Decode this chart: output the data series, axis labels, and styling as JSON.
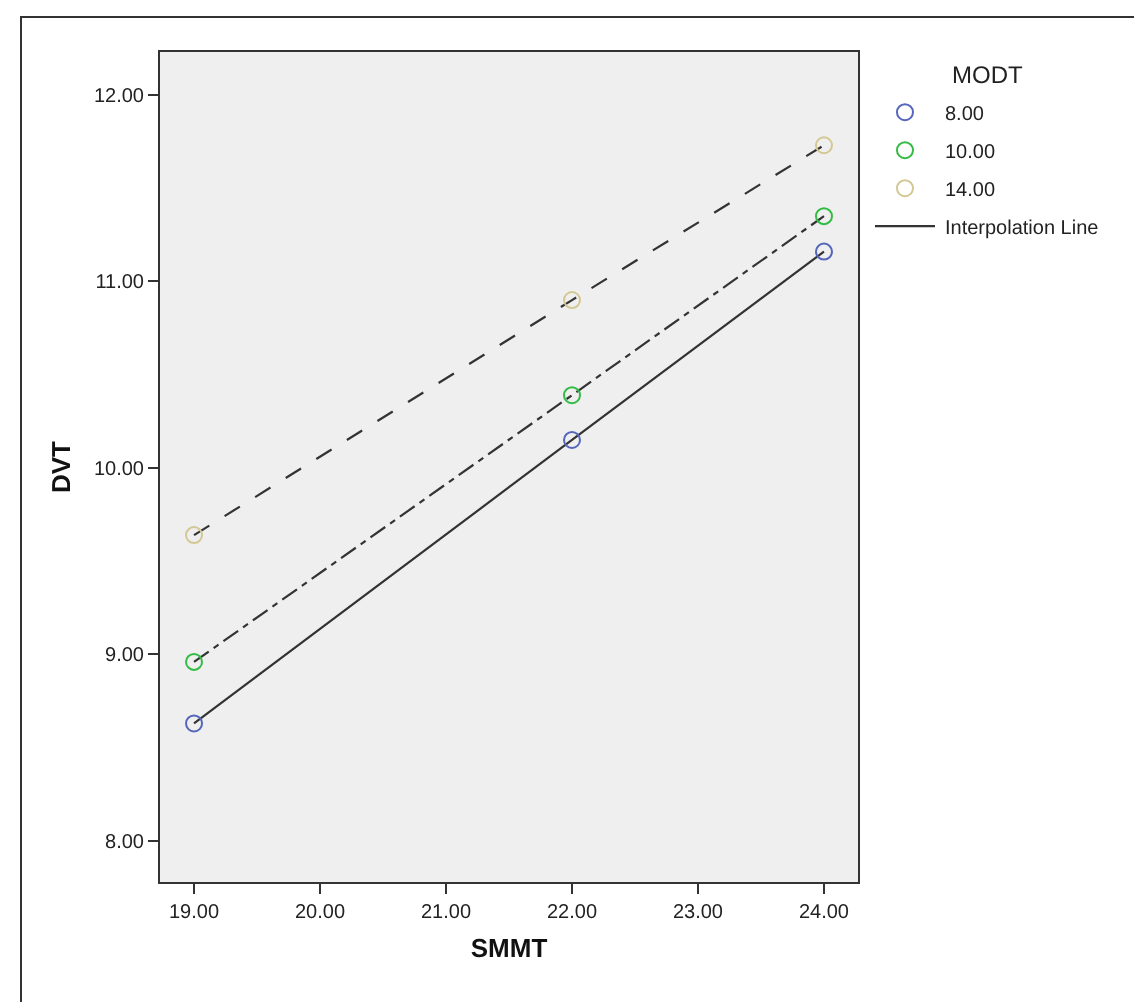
{
  "chart_data": {
    "type": "scatter",
    "xlabel": "SMMT",
    "ylabel": "DVT",
    "legend_title": "MODT",
    "legend": "top right",
    "marker": "circle",
    "grid": false,
    "x": [
      19,
      22,
      24
    ],
    "series": [
      {
        "name": "8.00",
        "color": "#5566bb",
        "values": [
          8.63,
          10.15,
          11.16
        ]
      },
      {
        "name": "10.00",
        "color": "#33bb44",
        "values": [
          8.96,
          10.39,
          11.35
        ]
      },
      {
        "name": "14.00",
        "color": "#d2c894",
        "values": [
          9.64,
          10.9,
          11.73
        ]
      },
      {
        "name": "Interpolation Line",
        "type": "line",
        "color": "#333333",
        "values": [
          8.63,
          10.15,
          11.16
        ],
        "marker": "none",
        "line_style": "solid"
      },
      {
        "type": "line",
        "color": "#333333",
        "values": [
          8.96,
          10.39,
          11.35
        ],
        "marker": "none",
        "line_style": "dashdot"
      },
      {
        "type": "line",
        "color": "#333333",
        "values": [
          9.64,
          10.9,
          11.73
        ],
        "marker": "none",
        "line_style": "dashed"
      }
    ],
    "xlim": [
      18.73,
      24.27
    ],
    "ylim": [
      7.78,
      12.23
    ],
    "xticks": [
      {
        "value": 19,
        "label": "19.00"
      },
      {
        "value": 20,
        "label": "20.00"
      },
      {
        "value": 21,
        "label": "21.00"
      },
      {
        "value": 22,
        "label": "22.00"
      },
      {
        "value": 23,
        "label": "23.00"
      },
      {
        "value": 24,
        "label": "24.00"
      }
    ],
    "yticks": [
      {
        "value": 8,
        "label": "8.00"
      },
      {
        "value": 9,
        "label": "9.00"
      },
      {
        "value": 10,
        "label": "10.00"
      },
      {
        "value": 11,
        "label": "11.00"
      },
      {
        "value": 12,
        "label": "12.00"
      }
    ]
  }
}
